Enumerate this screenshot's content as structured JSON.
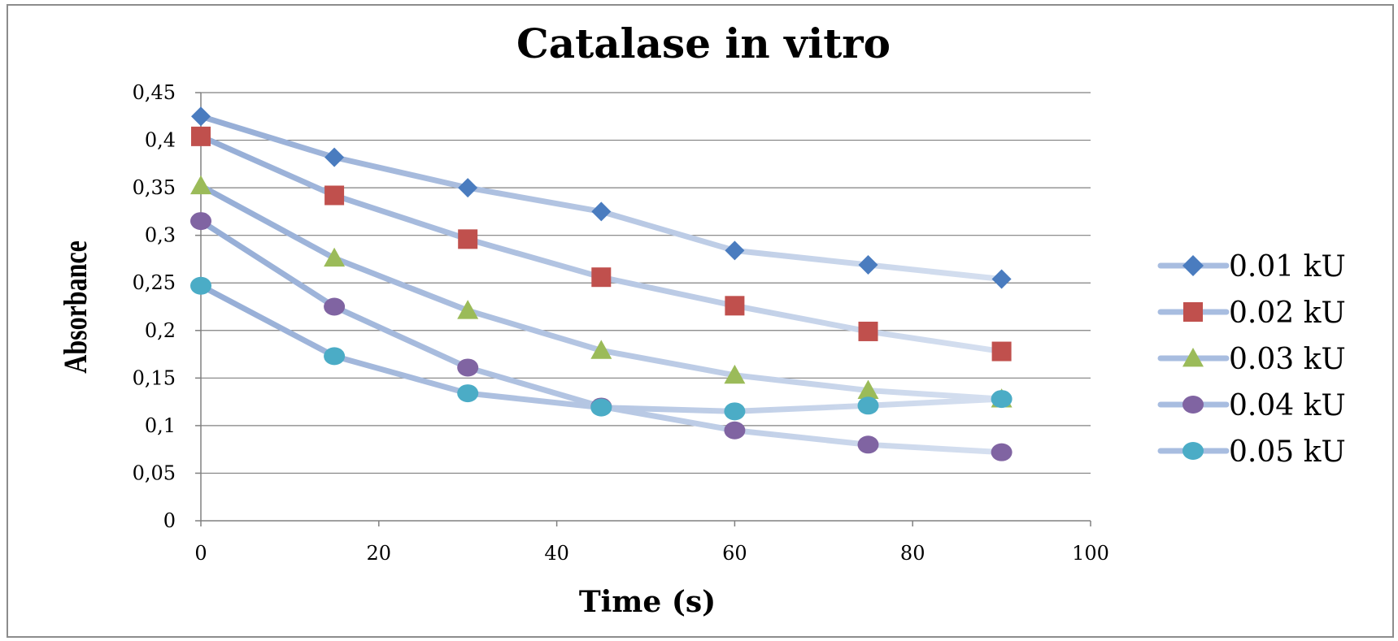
{
  "chart_data": {
    "type": "line",
    "title": "Catalase in vitro",
    "xlabel": "Time (s)",
    "ylabel": "Absorbance",
    "xlim": [
      0,
      100
    ],
    "ylim": [
      0,
      0.45
    ],
    "x_ticks": [
      "0",
      "20",
      "40",
      "60",
      "80",
      "100"
    ],
    "x_tick_values": [
      0,
      20,
      40,
      60,
      80,
      100
    ],
    "y_ticks": [
      "0",
      "0,05",
      "0,1",
      "0,15",
      "0,2",
      "0,25",
      "0,3",
      "0,35",
      "0,4",
      "0,45"
    ],
    "y_tick_values": [
      0,
      0.05,
      0.1,
      0.15,
      0.2,
      0.25,
      0.3,
      0.35,
      0.4,
      0.45
    ],
    "grid": "horizontal",
    "legend_position": "right",
    "x": [
      0,
      15,
      30,
      45,
      60,
      75,
      90
    ],
    "series": [
      {
        "name": "0.01 kU",
        "marker": "diamond",
        "color": "#4a7cbf",
        "values": [
          0.425,
          0.382,
          0.35,
          0.325,
          0.284,
          0.269,
          0.254
        ]
      },
      {
        "name": "0.02 kU",
        "marker": "square",
        "color": "#c0504d",
        "values": [
          0.404,
          0.342,
          0.296,
          0.256,
          0.226,
          0.199,
          0.178
        ]
      },
      {
        "name": "0.03 kU",
        "marker": "triangle",
        "color": "#9bbb59",
        "values": [
          0.352,
          0.276,
          0.221,
          0.179,
          0.153,
          0.137,
          0.128
        ]
      },
      {
        "name": "0.04 kU",
        "marker": "circle",
        "color": "#8064a2",
        "values": [
          0.315,
          0.225,
          0.161,
          0.12,
          0.095,
          0.08,
          0.072
        ]
      },
      {
        "name": "0.05 kU",
        "marker": "circle",
        "color": "#4bacc6",
        "values": [
          0.247,
          0.173,
          0.134,
          0.119,
          0.115,
          0.121,
          0.128
        ]
      }
    ]
  }
}
